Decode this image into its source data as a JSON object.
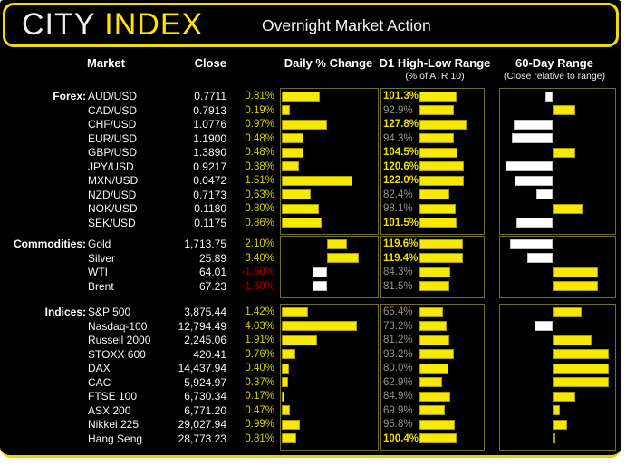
{
  "header": {
    "logo_city": "CITY",
    "logo_index": "INDEX",
    "title": "Overnight Market Action"
  },
  "columns": {
    "market": "Market",
    "close": "Close",
    "daily": "Daily % Change",
    "d1": "D1 High-Low Range",
    "d1_sub": "(% of ATR 10)",
    "d60": "60-Day Range",
    "d60_sub": "(Close relative to range)"
  },
  "colors": {
    "bar_yellow": "#f6ea00",
    "bar_white": "#ffffff",
    "positive_text": "#d4d000",
    "negative_text": "#ae0000",
    "hot_label": "#ecdf00",
    "muted_label": "#94948a",
    "panel_border": "#716d2a",
    "header_border": "#f0dc00",
    "logo_yellow": "#ffe400",
    "background": "#000000"
  },
  "chart_data": {
    "type": "table",
    "title": "Overnight Market Action",
    "notes": "Three bar charts per section: daily % change (white bars = negative), D1 high-low range as % of ATR10, and close position within 60-day range (50 = middle, white bars = below middle)",
    "d1_axis": [
      0,
      168
    ],
    "range_axis": [
      0,
      100
    ],
    "sections": [
      {
        "label": "Forex:",
        "daily_axis": [
          0,
          2
        ],
        "rows": [
          {
            "market": "AUD/USD",
            "close": "0.7711",
            "daily_pct": 0.81,
            "daily_label": "0.81%",
            "d1_pct": 101.3,
            "d1_label": "101.3%",
            "range_pos_pct": 44
          },
          {
            "market": "CAD/USD",
            "close": "0.7913",
            "daily_pct": 0.19,
            "daily_label": "0.19%",
            "d1_pct": 92.9,
            "d1_label": "92.9%",
            "range_pos_pct": 70
          },
          {
            "market": "CHF/USD",
            "close": "1.0776",
            "daily_pct": 0.97,
            "daily_label": "0.97%",
            "d1_pct": 127.8,
            "d1_label": "127.8%",
            "range_pos_pct": 16
          },
          {
            "market": "EUR/USD",
            "close": "1.1900",
            "daily_pct": 0.48,
            "daily_label": "0.48%",
            "d1_pct": 94.3,
            "d1_label": "94.3%",
            "range_pos_pct": 14
          },
          {
            "market": "GBP/USD",
            "close": "1.3890",
            "daily_pct": 0.48,
            "daily_label": "0.48%",
            "d1_pct": 104.5,
            "d1_label": "104.5%",
            "range_pos_pct": 70
          },
          {
            "market": "JPY/USD",
            "close": "0.9217",
            "daily_pct": 0.38,
            "daily_label": "0.38%",
            "d1_pct": 120.6,
            "d1_label": "120.6%",
            "range_pos_pct": 9
          },
          {
            "market": "MXN/USD",
            "close": "0.0472",
            "daily_pct": 1.51,
            "daily_label": "1.51%",
            "d1_pct": 122.0,
            "d1_label": "122.0%",
            "range_pos_pct": 17
          },
          {
            "market": "NZD/USD",
            "close": "0.7173",
            "daily_pct": 0.63,
            "daily_label": "0.63%",
            "d1_pct": 82.4,
            "d1_label": "82.4%",
            "range_pos_pct": 36
          },
          {
            "market": "NOK/USD",
            "close": "0.1180",
            "daily_pct": 0.8,
            "daily_label": "0.80%",
            "d1_pct": 98.1,
            "d1_label": "98.1%",
            "range_pos_pct": 76
          },
          {
            "market": "SEK/USD",
            "close": "0.1175",
            "daily_pct": 0.86,
            "daily_label": "0.86%",
            "d1_pct": 101.5,
            "d1_label": "101.5%",
            "range_pos_pct": 18
          }
        ]
      },
      {
        "label": "Commodities:",
        "daily_axis": [
          -5,
          5.2
        ],
        "rows": [
          {
            "market": "Gold",
            "close": "1,713.75",
            "daily_pct": 2.1,
            "daily_label": "2.10%",
            "d1_pct": 119.6,
            "d1_label": "119.6%",
            "range_pos_pct": 13
          },
          {
            "market": "Silver",
            "close": "25.89",
            "daily_pct": 3.4,
            "daily_label": "3.40%",
            "d1_pct": 119.4,
            "d1_label": "119.4%",
            "range_pos_pct": 28
          },
          {
            "market": "WTI",
            "close": "64.01",
            "daily_pct": -1.6,
            "daily_label": "-1.60%",
            "d1_pct": 84.3,
            "d1_label": "84.3%",
            "range_pos_pct": 90
          },
          {
            "market": "Brent",
            "close": "67.23",
            "daily_pct": -1.6,
            "daily_label": "-1.60%",
            "d1_pct": 81.5,
            "d1_label": "81.5%",
            "range_pos_pct": 90
          }
        ]
      },
      {
        "label": "Indices:",
        "daily_axis": [
          0,
          5
        ],
        "rows": [
          {
            "market": "S&P 500",
            "close": "3,875.44",
            "daily_pct": 1.42,
            "daily_label": "1.42%",
            "d1_pct": 65.4,
            "d1_label": "65.4%",
            "range_pos_pct": 75
          },
          {
            "market": "Nasdaq-100",
            "close": "12,794.49",
            "daily_pct": 4.03,
            "daily_label": "4.03%",
            "d1_pct": 73.2,
            "d1_label": "73.2%",
            "range_pos_pct": 34
          },
          {
            "market": "Russell 2000",
            "close": "2,245.06",
            "daily_pct": 1.91,
            "daily_label": "1.91%",
            "d1_pct": 81.2,
            "d1_label": "81.2%",
            "range_pos_pct": 84
          },
          {
            "market": "STOXX 600",
            "close": "420.41",
            "daily_pct": 0.76,
            "daily_label": "0.76%",
            "d1_pct": 93.2,
            "d1_label": "93.2%",
            "range_pos_pct": 99
          },
          {
            "market": "DAX",
            "close": "14,437.94",
            "daily_pct": 0.4,
            "daily_label": "0.40%",
            "d1_pct": 80.0,
            "d1_label": "80.0%",
            "range_pos_pct": 99
          },
          {
            "market": "CAC",
            "close": "5,924.97",
            "daily_pct": 0.37,
            "daily_label": "0.37%",
            "d1_pct": 62.9,
            "d1_label": "62.9%",
            "range_pos_pct": 99
          },
          {
            "market": "FTSE 100",
            "close": "6,730.34",
            "daily_pct": 0.17,
            "daily_label": "0.17%",
            "d1_pct": 84.9,
            "d1_label": "84.9%",
            "range_pos_pct": 70
          },
          {
            "market": "ASX 200",
            "close": "6,771.20",
            "daily_pct": 0.47,
            "daily_label": "0.47%",
            "d1_pct": 69.9,
            "d1_label": "69.9%",
            "range_pos_pct": 56
          },
          {
            "market": "Nikkei 225",
            "close": "29,027.94",
            "daily_pct": 0.99,
            "daily_label": "0.99%",
            "d1_pct": 95.8,
            "d1_label": "95.8%",
            "range_pos_pct": 63
          },
          {
            "market": "Hang Seng",
            "close": "28,773.23",
            "daily_pct": 0.81,
            "daily_label": "0.81%",
            "d1_pct": 100.4,
            "d1_label": "100.4%",
            "range_pos_pct": 52
          }
        ]
      }
    ]
  }
}
